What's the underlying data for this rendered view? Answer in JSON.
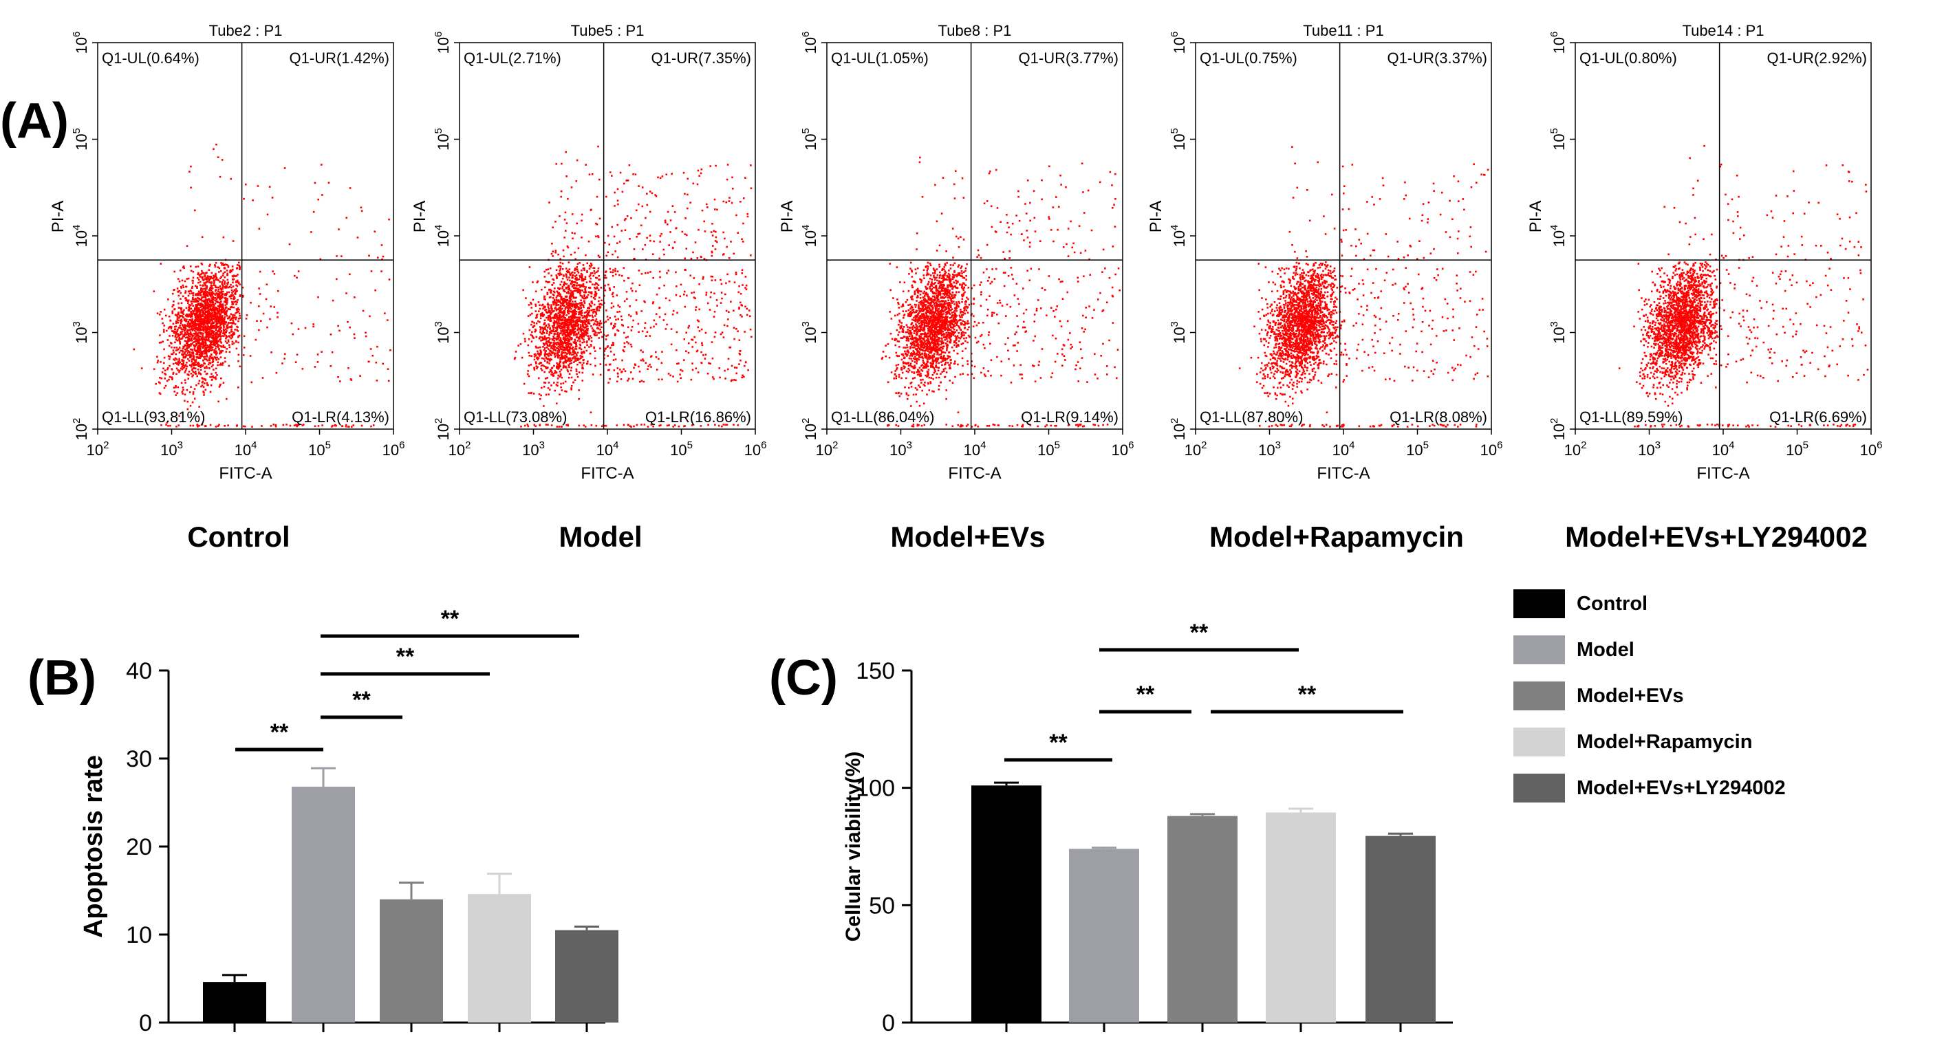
{
  "panel_labels": {
    "a": "(A)",
    "b": "(B)",
    "c": "(C)"
  },
  "groups": [
    "Control",
    "Model",
    "Model+EVs",
    "Model+Rapamycin",
    "Model+EVs+LY294002"
  ],
  "colors": {
    "dots": "#ff0000",
    "bars": [
      "#000000",
      "#9e9ea6",
      "#808080",
      "#d3d3d3",
      "#626262"
    ]
  },
  "chart_data": [
    {
      "type": "scatter",
      "subtype": "flow-cytometry-quadrant",
      "panel": "A",
      "xlabel": "FITC-A",
      "ylabel": "PI-A",
      "scale": "log",
      "xlim": [
        100,
        1000000
      ],
      "ylim": [
        100,
        1000000
      ],
      "ticks": [
        "10^2",
        "10^3",
        "10^4",
        "10^5",
        "10^6"
      ],
      "gate_x_log": 3.95,
      "gate_y_log": 3.75,
      "plots": [
        {
          "title": "Tube2 : P1",
          "group": "Control",
          "UL": "Q1-UL(0.64%)",
          "UR": "Q1-UR(1.42%)",
          "LL": "Q1-LL(93.81%)",
          "LR": "Q1-LR(4.13%)",
          "ul": 0.64,
          "ur": 1.42,
          "ll": 93.81,
          "lr": 4.13
        },
        {
          "title": "Tube5 : P1",
          "group": "Model",
          "UL": "Q1-UL(2.71%)",
          "UR": "Q1-UR(7.35%)",
          "LL": "Q1-LL(73.08%)",
          "LR": "Q1-LR(16.86%)",
          "ul": 2.71,
          "ur": 7.35,
          "ll": 73.08,
          "lr": 16.86
        },
        {
          "title": "Tube8 : P1",
          "group": "Model+EVs",
          "UL": "Q1-UL(1.05%)",
          "UR": "Q1-UR(3.77%)",
          "LL": "Q1-LL(86.04%)",
          "LR": "Q1-LR(9.14%)",
          "ul": 1.05,
          "ur": 3.77,
          "ll": 86.04,
          "lr": 9.14
        },
        {
          "title": "Tube11 : P1",
          "group": "Model+Rapamycin",
          "UL": "Q1-UL(0.75%)",
          "UR": "Q1-UR(3.37%)",
          "LL": "Q1-LL(87.80%)",
          "LR": "Q1-LR(8.08%)",
          "ul": 0.75,
          "ur": 3.37,
          "ll": 87.8,
          "lr": 8.08
        },
        {
          "title": "Tube14 : P1",
          "group": "Model+EVs+LY294002",
          "UL": "Q1-UL(0.80%)",
          "UR": "Q1-UR(2.92%)",
          "LL": "Q1-LL(89.59%)",
          "LR": "Q1-LR(6.69%)",
          "ul": 0.8,
          "ur": 2.92,
          "ll": 89.59,
          "lr": 6.69
        }
      ]
    },
    {
      "type": "bar",
      "panel": "B",
      "categories": [
        "Control",
        "Model",
        "Model+EVs",
        "Model+Rapamycin",
        "Model+EVs+LY294002"
      ],
      "values": [
        4.6,
        26.8,
        14.0,
        14.6,
        10.5
      ],
      "errors": [
        0.8,
        2.1,
        1.9,
        2.3,
        0.4
      ],
      "ylabel": "Apoptosis rate",
      "ylim": [
        0,
        40
      ],
      "yticks": [
        0,
        10,
        20,
        30,
        40
      ],
      "significance": [
        {
          "from": 0,
          "to": 1,
          "label": "**"
        },
        {
          "from": 1,
          "to": 2,
          "label": "**"
        },
        {
          "from": 1,
          "to": 3,
          "label": "**"
        },
        {
          "from": 1,
          "to": 4,
          "label": "**"
        }
      ]
    },
    {
      "type": "bar",
      "panel": "C",
      "categories": [
        "Control",
        "Model",
        "Model+EVs",
        "Model+Rapamycin",
        "Model+EVs+LY294002"
      ],
      "values": [
        101,
        74,
        88,
        89.5,
        79.5
      ],
      "errors": [
        1.2,
        0.5,
        0.8,
        1.6,
        1.0
      ],
      "ylabel": "Cellular viability(%)",
      "ylim": [
        0,
        150
      ],
      "yticks": [
        0,
        50,
        100,
        150
      ],
      "legend": "right",
      "significance": [
        {
          "from": 0,
          "to": 1,
          "label": "**"
        },
        {
          "from": 1,
          "to": 2,
          "label": "**"
        },
        {
          "from": 1,
          "to": 3,
          "label": "**"
        },
        {
          "from": 2,
          "to": 4,
          "label": "**"
        }
      ]
    }
  ]
}
